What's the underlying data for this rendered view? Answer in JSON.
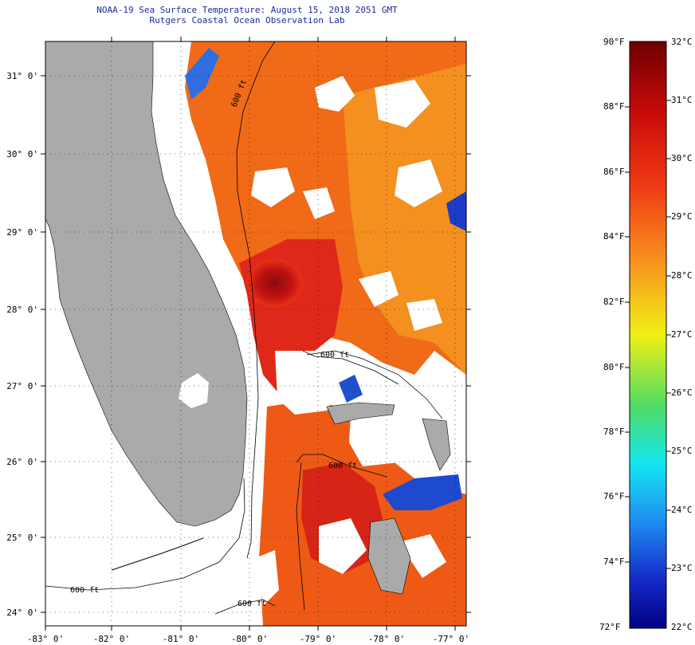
{
  "header": {
    "title_line1": "NOAA-19 Sea Surface Temperature:  August 15, 2018 2051 GMT",
    "title_line2": "Rutgers Coastal Ocean Observation Lab"
  },
  "map": {
    "lat_labels": [
      "31° 0'",
      "30° 0'",
      "29° 0'",
      "28° 0'",
      "27° 0'",
      "26° 0'",
      "25° 0'",
      "24° 0'"
    ],
    "lon_labels": [
      "-83° 0'",
      "-82° 0'",
      "-81° 0'",
      "-80° 0'",
      "-79° 0'",
      "-78° 0'",
      "-77° 0'"
    ],
    "contour_label": "600 ft",
    "colors": {
      "land": "#aaaaaa",
      "cloud": "#ffffff",
      "warm": "#f05a10",
      "hot": "#a01010",
      "cool": "#1e40d0"
    }
  },
  "colorbar": {
    "fahrenheit_labels": [
      "90°F",
      "88°F",
      "86°F",
      "84°F",
      "82°F",
      "80°F",
      "78°F",
      "76°F",
      "74°F",
      "72°F"
    ],
    "celsius_labels": [
      "32°C",
      "31°C",
      "30°C",
      "29°C",
      "28°C",
      "27°C",
      "26°C",
      "25°C",
      "24°C",
      "23°C",
      "22°C"
    ]
  }
}
